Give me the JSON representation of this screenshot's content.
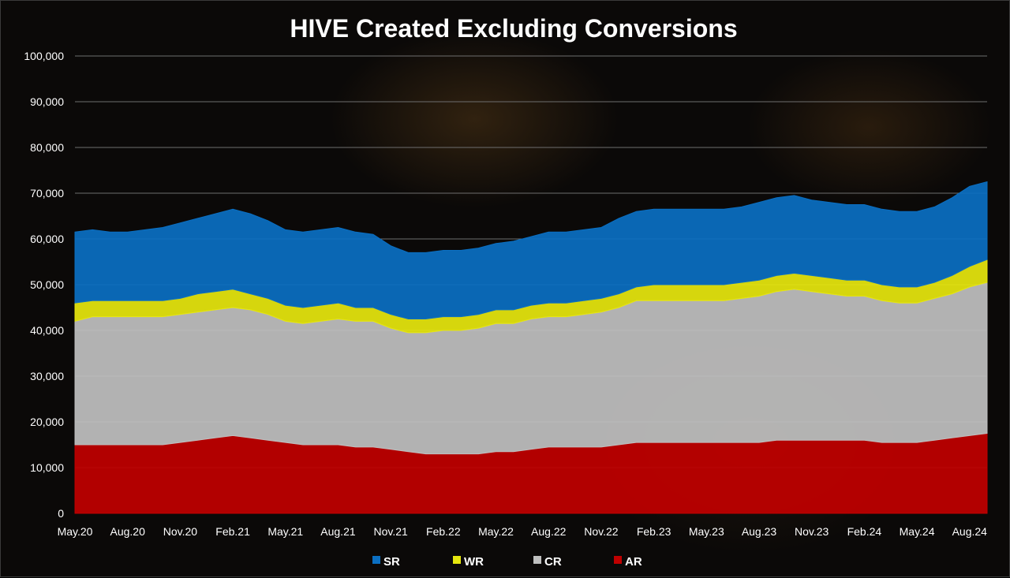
{
  "chart_data": {
    "type": "area",
    "title": "HIVE Created Excluding Conversions",
    "xlabel": "",
    "ylabel": "",
    "stacked": true,
    "ylim": [
      0,
      100000
    ],
    "y_ticks": [
      "0",
      "10,000",
      "20,000",
      "30,000",
      "40,000",
      "50,000",
      "60,000",
      "70,000",
      "80,000",
      "90,000",
      "100,000"
    ],
    "x_ticks": [
      "May.20",
      "Aug.20",
      "Nov.20",
      "Feb.21",
      "May.21",
      "Aug.21",
      "Nov.21",
      "Feb.22",
      "May.22",
      "Aug.22",
      "Nov.22",
      "Feb.23",
      "May.23",
      "Aug.23",
      "Nov.23",
      "Feb.24",
      "May.24",
      "Aug.24"
    ],
    "x": [
      "May.20",
      "Jun.20",
      "Jul.20",
      "Aug.20",
      "Sep.20",
      "Oct.20",
      "Nov.20",
      "Dec.20",
      "Jan.21",
      "Feb.21",
      "Mar.21",
      "Apr.21",
      "May.21",
      "Jun.21",
      "Jul.21",
      "Aug.21",
      "Sep.21",
      "Oct.21",
      "Nov.21",
      "Dec.21",
      "Jan.22",
      "Feb.22",
      "Mar.22",
      "Apr.22",
      "May.22",
      "Jun.22",
      "Jul.22",
      "Aug.22",
      "Sep.22",
      "Oct.22",
      "Nov.22",
      "Dec.22",
      "Jan.23",
      "Feb.23",
      "Mar.23",
      "Apr.23",
      "May.23",
      "Jun.23",
      "Jul.23",
      "Aug.23",
      "Sep.23",
      "Oct.23",
      "Nov.23",
      "Dec.23",
      "Jan.24",
      "Feb.24",
      "Mar.24",
      "Apr.24",
      "May.24",
      "Jun.24",
      "Jul.24",
      "Aug.24",
      "Sep.24"
    ],
    "series": [
      {
        "name": "AR",
        "color": "#c00000",
        "values": [
          15000,
          15000,
          15000,
          15000,
          15000,
          15000,
          15500,
          16000,
          16500,
          17000,
          16500,
          16000,
          15500,
          15000,
          15000,
          15000,
          14500,
          14500,
          14000,
          13500,
          13000,
          13000,
          13000,
          13000,
          13500,
          13500,
          14000,
          14500,
          14500,
          14500,
          14500,
          15000,
          15500,
          15500,
          15500,
          15500,
          15500,
          15500,
          15500,
          15500,
          16000,
          16000,
          16000,
          16000,
          16000,
          16000,
          15500,
          15500,
          15500,
          16000,
          16500,
          17000,
          17500
        ]
      },
      {
        "name": "CR",
        "color": "#bfbfbf",
        "values": [
          27000,
          28000,
          28000,
          28000,
          28000,
          28000,
          28000,
          28000,
          28000,
          28000,
          28000,
          27500,
          26500,
          26500,
          27000,
          27500,
          27500,
          27500,
          26500,
          26000,
          26500,
          27000,
          27000,
          27500,
          28000,
          28000,
          28500,
          28500,
          28500,
          29000,
          29500,
          30000,
          31000,
          31000,
          31000,
          31000,
          31000,
          31000,
          31500,
          32000,
          32500,
          33000,
          32500,
          32000,
          31500,
          31500,
          31000,
          30500,
          30500,
          31000,
          31500,
          32500,
          33000
        ]
      },
      {
        "name": "WR",
        "color": "#e6e60e",
        "values": [
          4000,
          3500,
          3500,
          3500,
          3500,
          3500,
          3500,
          4000,
          4000,
          4000,
          3500,
          3500,
          3500,
          3500,
          3500,
          3500,
          3000,
          3000,
          3000,
          3000,
          3000,
          3000,
          3000,
          3000,
          3000,
          3000,
          3000,
          3000,
          3000,
          3000,
          3000,
          3000,
          3000,
          3500,
          3500,
          3500,
          3500,
          3500,
          3500,
          3500,
          3500,
          3500,
          3500,
          3500,
          3500,
          3500,
          3500,
          3500,
          3500,
          3500,
          4000,
          4500,
          5000
        ]
      },
      {
        "name": "SR",
        "color": "#0b6fc2",
        "values": [
          15500,
          15500,
          15000,
          15000,
          15500,
          16000,
          16500,
          16500,
          17000,
          17500,
          17500,
          17000,
          16500,
          16500,
          16500,
          16500,
          16500,
          16000,
          15000,
          14500,
          14500,
          14500,
          14500,
          14500,
          14500,
          15000,
          15000,
          15500,
          15500,
          15500,
          15500,
          16500,
          16500,
          16500,
          16500,
          16500,
          16500,
          16500,
          16500,
          17000,
          17000,
          17000,
          16500,
          16500,
          16500,
          16500,
          16500,
          16500,
          16500,
          16500,
          17000,
          17500,
          17000
        ]
      }
    ],
    "legend": {
      "position": "bottom",
      "order": [
        "SR",
        "WR",
        "CR",
        "AR"
      ]
    },
    "grid": true
  }
}
